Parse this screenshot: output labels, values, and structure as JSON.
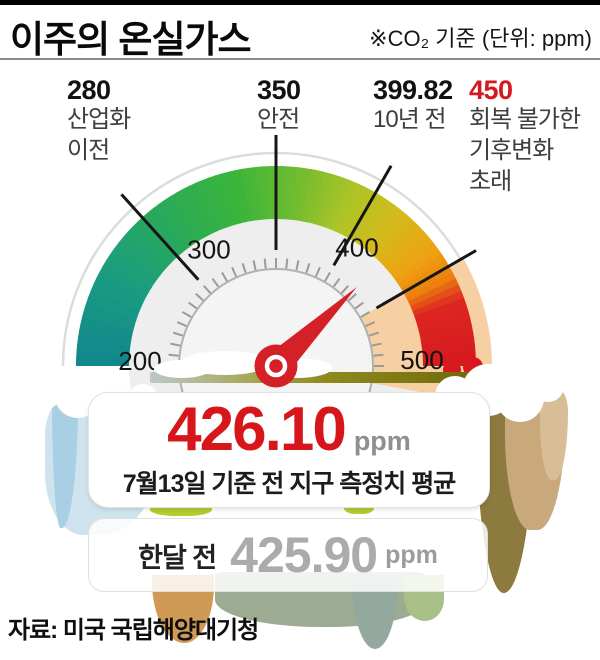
{
  "header": {
    "title": "이주의 온실가스",
    "note": "※CO₂ 기준 (단위: ppm)"
  },
  "annotations_display": [
    {
      "value": "280",
      "value_color": "#121212",
      "lines": [
        "산업화",
        "이전"
      ]
    },
    {
      "value": "350",
      "value_color": "#121212",
      "lines": [
        "안전"
      ]
    },
    {
      "value": "399.82",
      "value_color": "#121212",
      "lines": [
        "10년 전"
      ]
    },
    {
      "value": "450",
      "value_color": "#d7191f",
      "lines": [
        "회복 불가한",
        "기후변화",
        "초래"
      ]
    }
  ],
  "chart_data": {
    "type": "gauge",
    "title": "이주의 온실가스",
    "unit": "ppm",
    "axis": {
      "min": 200,
      "max": 500,
      "major_ticks": [
        200,
        300,
        400,
        500
      ],
      "minor_tick_step": 10
    },
    "needle_value": 426.1,
    "annotations": [
      {
        "value": 280,
        "label": "산업화 이전"
      },
      {
        "value": 350,
        "label": "안전"
      },
      {
        "value": 399.82,
        "label": "10년 전"
      },
      {
        "value": 450,
        "label": "회복 불가한 기후변화 초래"
      }
    ],
    "danger_zone": {
      "from": 450,
      "to": 517
    },
    "band_color_stops": [
      [
        200,
        "#11868f"
      ],
      [
        250,
        "#1b9d7f"
      ],
      [
        290,
        "#2aa958"
      ],
      [
        330,
        "#3bb53a"
      ],
      [
        360,
        "#6fbc30"
      ],
      [
        390,
        "#adc426"
      ],
      [
        415,
        "#d4ba1b"
      ],
      [
        440,
        "#eea211"
      ],
      [
        455,
        "#ec7f0d"
      ],
      [
        467,
        "#dd2721"
      ],
      [
        500,
        "#d5191f"
      ]
    ]
  },
  "cards": {
    "current": {
      "value": "426.10",
      "unit": "ppm",
      "caption": "7월13일 기준 전 지구 측정치 평균"
    },
    "previous": {
      "label": "한달 전",
      "value": "425.90",
      "unit": "ppm"
    }
  },
  "footer": {
    "source": "자료: 미국 국립해양대기청"
  },
  "colors": {
    "accent_red": "#d7191f",
    "danger_wedge": "#f6d0a3",
    "needle": "#d42127",
    "value_gray": "#ababab"
  }
}
